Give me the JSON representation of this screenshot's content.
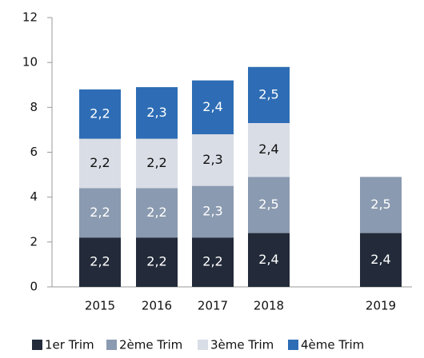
{
  "chart_data": {
    "type": "stacked_bar",
    "categories": [
      "2015",
      "2016",
      "2017",
      "2018",
      "2019"
    ],
    "series": [
      {
        "name": "1er Trim",
        "color": "#232b3a",
        "values": [
          2.2,
          2.2,
          2.2,
          2.4,
          2.4
        ],
        "value_labels": [
          "2,2",
          "2,2",
          "2,2",
          "2,4",
          "2,4"
        ]
      },
      {
        "name": "2ème Trim",
        "color": "#8a9ab0",
        "values": [
          2.2,
          2.2,
          2.3,
          2.5,
          2.5
        ],
        "value_labels": [
          "2,2",
          "2,2",
          "2,3",
          "2,5",
          "2,5"
        ]
      },
      {
        "name": "3ème Trim",
        "color": "#d9dde6",
        "values": [
          2.2,
          2.2,
          2.3,
          2.4,
          null
        ],
        "value_labels": [
          "2,2",
          "2,2",
          "2,3",
          "2,4",
          null
        ]
      },
      {
        "name": "4ème Trim",
        "color": "#2e6db5",
        "values": [
          2.2,
          2.3,
          2.4,
          2.5,
          null
        ],
        "value_labels": [
          "2,2",
          "2,3",
          "2,4",
          "2,5",
          null
        ]
      }
    ],
    "ylim": [
      0,
      12
    ],
    "yticks": [
      0,
      2,
      4,
      6,
      8,
      10,
      12
    ],
    "legend": "bottom"
  }
}
